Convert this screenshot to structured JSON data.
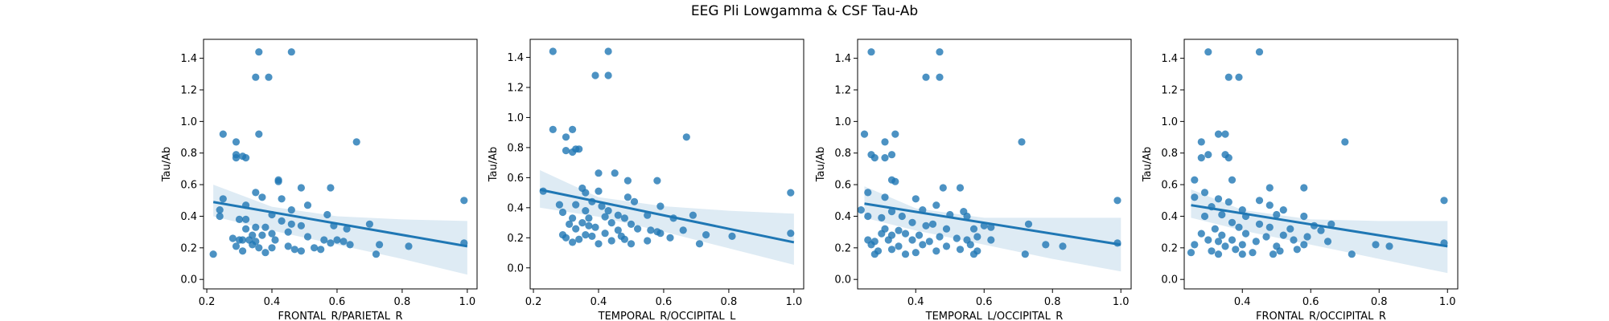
{
  "figure": {
    "suptitle": "EEG Pli Lowgamma & CSF Tau-Ab"
  },
  "chart_data": [
    {
      "type": "scatter",
      "xlabel": "FRONTAL_R/PARIETAL_R",
      "ylabel": "Tau/Ab",
      "xlim": [
        0.19,
        1.03
      ],
      "ylim": [
        -0.06,
        1.52
      ],
      "xticks": [
        0.2,
        0.4,
        0.6,
        0.8,
        1.0
      ],
      "xtick_labels": [
        "0.2",
        "0.4",
        "0.6",
        "0.8",
        "1.0"
      ],
      "yticks": [
        0.0,
        0.2,
        0.4,
        0.6,
        0.8,
        1.0,
        1.2,
        1.4
      ],
      "ytick_labels": [
        "0.0",
        "0.2",
        "0.4",
        "0.6",
        "0.8",
        "1.0",
        "1.2",
        "1.4"
      ],
      "points": [
        [
          0.36,
          1.44
        ],
        [
          0.46,
          1.44
        ],
        [
          0.35,
          1.28
        ],
        [
          0.39,
          1.28
        ],
        [
          0.25,
          0.92
        ],
        [
          0.36,
          0.92
        ],
        [
          0.29,
          0.87
        ],
        [
          0.66,
          0.87
        ],
        [
          0.29,
          0.79
        ],
        [
          0.31,
          0.78
        ],
        [
          0.29,
          0.77
        ],
        [
          0.32,
          0.77
        ],
        [
          0.42,
          0.63
        ],
        [
          0.42,
          0.62
        ],
        [
          0.49,
          0.58
        ],
        [
          0.58,
          0.58
        ],
        [
          0.35,
          0.55
        ],
        [
          0.37,
          0.52
        ],
        [
          0.43,
          0.51
        ],
        [
          0.25,
          0.51
        ],
        [
          0.24,
          0.44
        ],
        [
          0.46,
          0.44
        ],
        [
          0.32,
          0.47
        ],
        [
          0.51,
          0.47
        ],
        [
          0.57,
          0.41
        ],
        [
          0.24,
          0.4
        ],
        [
          0.4,
          0.41
        ],
        [
          0.3,
          0.38
        ],
        [
          0.32,
          0.38
        ],
        [
          0.43,
          0.37
        ],
        [
          0.46,
          0.35
        ],
        [
          0.49,
          0.34
        ],
        [
          0.59,
          0.34
        ],
        [
          0.7,
          0.35
        ],
        [
          0.38,
          0.33
        ],
        [
          0.32,
          0.32
        ],
        [
          0.35,
          0.33
        ],
        [
          0.63,
          0.32
        ],
        [
          0.45,
          0.3
        ],
        [
          0.4,
          0.29
        ],
        [
          0.37,
          0.28
        ],
        [
          0.34,
          0.28
        ],
        [
          0.28,
          0.26
        ],
        [
          0.3,
          0.25
        ],
        [
          0.31,
          0.25
        ],
        [
          0.33,
          0.25
        ],
        [
          0.35,
          0.24
        ],
        [
          0.41,
          0.25
        ],
        [
          0.51,
          0.27
        ],
        [
          0.56,
          0.25
        ],
        [
          0.6,
          0.25
        ],
        [
          0.62,
          0.24
        ],
        [
          0.73,
          0.22
        ],
        [
          0.82,
          0.21
        ],
        [
          0.29,
          0.21
        ],
        [
          0.34,
          0.22
        ],
        [
          0.36,
          0.2
        ],
        [
          0.4,
          0.2
        ],
        [
          0.47,
          0.19
        ],
        [
          0.49,
          0.18
        ],
        [
          0.53,
          0.2
        ],
        [
          0.55,
          0.19
        ],
        [
          0.58,
          0.23
        ],
        [
          0.64,
          0.22
        ],
        [
          0.31,
          0.18
        ],
        [
          0.38,
          0.17
        ],
        [
          0.45,
          0.21
        ],
        [
          0.72,
          0.16
        ],
        [
          0.22,
          0.16
        ],
        [
          0.99,
          0.5
        ],
        [
          0.99,
          0.23
        ]
      ],
      "regression": {
        "x": [
          0.22,
          1.0
        ],
        "y": [
          0.49,
          0.21
        ]
      },
      "ci_band": {
        "x": [
          0.22,
          0.4,
          0.6,
          0.8,
          1.0
        ],
        "lower": [
          0.4,
          0.31,
          0.22,
          0.13,
          0.03
        ],
        "upper": [
          0.6,
          0.46,
          0.4,
          0.38,
          0.37
        ]
      }
    },
    {
      "type": "scatter",
      "xlabel": "TEMPORAL_R/OCCIPITAL_L",
      "ylabel": "Tau/Ab",
      "xlim": [
        0.19,
        1.03
      ],
      "ylim": [
        -0.14,
        1.52
      ],
      "xticks": [
        0.2,
        0.4,
        0.6,
        0.8,
        1.0
      ],
      "xtick_labels": [
        "0.2",
        "0.4",
        "0.6",
        "0.8",
        "1.0"
      ],
      "yticks": [
        0.0,
        0.2,
        0.4,
        0.6,
        0.8,
        1.0,
        1.2,
        1.4
      ],
      "ytick_labels": [
        "0.0",
        "0.2",
        "0.4",
        "0.6",
        "0.8",
        "1.0",
        "1.2",
        "1.4"
      ],
      "points": [
        [
          0.26,
          1.44
        ],
        [
          0.43,
          1.44
        ],
        [
          0.39,
          1.28
        ],
        [
          0.43,
          1.28
        ],
        [
          0.26,
          0.92
        ],
        [
          0.32,
          0.92
        ],
        [
          0.3,
          0.87
        ],
        [
          0.67,
          0.87
        ],
        [
          0.3,
          0.78
        ],
        [
          0.33,
          0.79
        ],
        [
          0.34,
          0.79
        ],
        [
          0.32,
          0.77
        ],
        [
          0.4,
          0.63
        ],
        [
          0.45,
          0.63
        ],
        [
          0.58,
          0.58
        ],
        [
          0.49,
          0.58
        ],
        [
          0.23,
          0.51
        ],
        [
          0.35,
          0.53
        ],
        [
          0.36,
          0.5
        ],
        [
          0.4,
          0.51
        ],
        [
          0.49,
          0.47
        ],
        [
          0.38,
          0.44
        ],
        [
          0.28,
          0.42
        ],
        [
          0.33,
          0.42
        ],
        [
          0.41,
          0.41
        ],
        [
          0.51,
          0.44
        ],
        [
          0.59,
          0.41
        ],
        [
          0.29,
          0.37
        ],
        [
          0.36,
          0.38
        ],
        [
          0.43,
          0.38
        ],
        [
          0.46,
          0.35
        ],
        [
          0.55,
          0.35
        ],
        [
          0.32,
          0.33
        ],
        [
          0.37,
          0.33
        ],
        [
          0.42,
          0.34
        ],
        [
          0.48,
          0.33
        ],
        [
          0.63,
          0.33
        ],
        [
          0.69,
          0.35
        ],
        [
          0.31,
          0.29
        ],
        [
          0.35,
          0.3
        ],
        [
          0.37,
          0.28
        ],
        [
          0.44,
          0.3
        ],
        [
          0.5,
          0.29
        ],
        [
          0.33,
          0.26
        ],
        [
          0.39,
          0.27
        ],
        [
          0.46,
          0.25
        ],
        [
          0.52,
          0.26
        ],
        [
          0.56,
          0.25
        ],
        [
          0.58,
          0.24
        ],
        [
          0.66,
          0.25
        ],
        [
          0.29,
          0.22
        ],
        [
          0.36,
          0.22
        ],
        [
          0.42,
          0.23
        ],
        [
          0.47,
          0.21
        ],
        [
          0.59,
          0.23
        ],
        [
          0.73,
          0.22
        ],
        [
          0.81,
          0.21
        ],
        [
          0.3,
          0.2
        ],
        [
          0.34,
          0.19
        ],
        [
          0.38,
          0.21
        ],
        [
          0.44,
          0.18
        ],
        [
          0.48,
          0.19
        ],
        [
          0.55,
          0.18
        ],
        [
          0.62,
          0.2
        ],
        [
          0.32,
          0.17
        ],
        [
          0.4,
          0.16
        ],
        [
          0.5,
          0.16
        ],
        [
          0.71,
          0.16
        ],
        [
          0.99,
          0.5
        ],
        [
          0.99,
          0.23
        ]
      ],
      "regression": {
        "x": [
          0.22,
          1.0
        ],
        "y": [
          0.52,
          0.17
        ]
      },
      "ci_band": {
        "x": [
          0.22,
          0.4,
          0.6,
          0.8,
          1.0
        ],
        "lower": [
          0.4,
          0.34,
          0.24,
          0.13,
          0.02
        ],
        "upper": [
          0.65,
          0.47,
          0.41,
          0.38,
          0.36
        ]
      }
    },
    {
      "type": "scatter",
      "xlabel": "TEMPORAL_L/OCCIPITAL_R",
      "ylabel": "Tau/Ab",
      "xlim": [
        0.23,
        1.03
      ],
      "ylim": [
        -0.06,
        1.52
      ],
      "xticks": [
        0.4,
        0.6,
        0.8,
        1.0
      ],
      "xtick_labels": [
        "0.4",
        "0.6",
        "0.8",
        "1.0"
      ],
      "yticks": [
        0.0,
        0.2,
        0.4,
        0.6,
        0.8,
        1.0,
        1.2,
        1.4
      ],
      "ytick_labels": [
        "0.0",
        "0.2",
        "0.4",
        "0.6",
        "0.8",
        "1.0",
        "1.2",
        "1.4"
      ],
      "points": [
        [
          0.27,
          1.44
        ],
        [
          0.47,
          1.44
        ],
        [
          0.43,
          1.28
        ],
        [
          0.47,
          1.28
        ],
        [
          0.25,
          0.92
        ],
        [
          0.34,
          0.92
        ],
        [
          0.31,
          0.87
        ],
        [
          0.71,
          0.87
        ],
        [
          0.27,
          0.79
        ],
        [
          0.28,
          0.77
        ],
        [
          0.31,
          0.77
        ],
        [
          0.33,
          0.79
        ],
        [
          0.33,
          0.63
        ],
        [
          0.34,
          0.62
        ],
        [
          0.48,
          0.58
        ],
        [
          0.53,
          0.58
        ],
        [
          0.26,
          0.55
        ],
        [
          0.31,
          0.52
        ],
        [
          0.4,
          0.51
        ],
        [
          0.46,
          0.47
        ],
        [
          0.24,
          0.44
        ],
        [
          0.33,
          0.43
        ],
        [
          0.42,
          0.44
        ],
        [
          0.54,
          0.43
        ],
        [
          0.26,
          0.4
        ],
        [
          0.3,
          0.39
        ],
        [
          0.36,
          0.4
        ],
        [
          0.5,
          0.41
        ],
        [
          0.55,
          0.4
        ],
        [
          0.39,
          0.36
        ],
        [
          0.45,
          0.35
        ],
        [
          0.6,
          0.34
        ],
        [
          0.73,
          0.35
        ],
        [
          0.31,
          0.32
        ],
        [
          0.35,
          0.31
        ],
        [
          0.43,
          0.34
        ],
        [
          0.49,
          0.32
        ],
        [
          0.57,
          0.32
        ],
        [
          0.62,
          0.33
        ],
        [
          0.3,
          0.29
        ],
        [
          0.33,
          0.28
        ],
        [
          0.37,
          0.29
        ],
        [
          0.41,
          0.28
        ],
        [
          0.47,
          0.27
        ],
        [
          0.52,
          0.26
        ],
        [
          0.58,
          0.27
        ],
        [
          0.26,
          0.25
        ],
        [
          0.28,
          0.24
        ],
        [
          0.32,
          0.25
        ],
        [
          0.39,
          0.25
        ],
        [
          0.44,
          0.24
        ],
        [
          0.55,
          0.25
        ],
        [
          0.62,
          0.25
        ],
        [
          0.27,
          0.22
        ],
        [
          0.35,
          0.21
        ],
        [
          0.42,
          0.22
        ],
        [
          0.49,
          0.21
        ],
        [
          0.56,
          0.22
        ],
        [
          0.78,
          0.22
        ],
        [
          0.83,
          0.21
        ],
        [
          0.29,
          0.18
        ],
        [
          0.33,
          0.19
        ],
        [
          0.4,
          0.17
        ],
        [
          0.46,
          0.18
        ],
        [
          0.53,
          0.19
        ],
        [
          0.58,
          0.18
        ],
        [
          0.28,
          0.16
        ],
        [
          0.37,
          0.16
        ],
        [
          0.57,
          0.16
        ],
        [
          0.72,
          0.16
        ],
        [
          0.99,
          0.5
        ],
        [
          0.99,
          0.23
        ]
      ],
      "regression": {
        "x": [
          0.25,
          1.0
        ],
        "y": [
          0.48,
          0.22
        ]
      },
      "ci_band": {
        "x": [
          0.25,
          0.4,
          0.6,
          0.8,
          1.0
        ],
        "lower": [
          0.39,
          0.31,
          0.22,
          0.13,
          0.05
        ],
        "upper": [
          0.59,
          0.45,
          0.39,
          0.39,
          0.39
        ]
      }
    },
    {
      "type": "scatter",
      "xlabel": "FRONTAL_R/OCCIPITAL_R",
      "ylabel": "Tau/Ab",
      "xlim": [
        0.23,
        1.03
      ],
      "ylim": [
        -0.06,
        1.52
      ],
      "xticks": [
        0.4,
        0.6,
        0.8,
        1.0
      ],
      "xtick_labels": [
        "0.4",
        "0.6",
        "0.8",
        "1.0"
      ],
      "yticks": [
        0.0,
        0.2,
        0.4,
        0.6,
        0.8,
        1.0,
        1.2,
        1.4
      ],
      "ytick_labels": [
        "0.0",
        "0.2",
        "0.4",
        "0.6",
        "0.8",
        "1.0",
        "1.2",
        "1.4"
      ],
      "points": [
        [
          0.3,
          1.44
        ],
        [
          0.45,
          1.44
        ],
        [
          0.36,
          1.28
        ],
        [
          0.39,
          1.28
        ],
        [
          0.33,
          0.92
        ],
        [
          0.35,
          0.92
        ],
        [
          0.28,
          0.87
        ],
        [
          0.7,
          0.87
        ],
        [
          0.3,
          0.79
        ],
        [
          0.35,
          0.79
        ],
        [
          0.28,
          0.77
        ],
        [
          0.36,
          0.77
        ],
        [
          0.26,
          0.63
        ],
        [
          0.37,
          0.63
        ],
        [
          0.48,
          0.58
        ],
        [
          0.58,
          0.58
        ],
        [
          0.29,
          0.55
        ],
        [
          0.26,
          0.52
        ],
        [
          0.33,
          0.51
        ],
        [
          0.45,
          0.5
        ],
        [
          0.36,
          0.49
        ],
        [
          0.48,
          0.47
        ],
        [
          0.31,
          0.46
        ],
        [
          0.4,
          0.44
        ],
        [
          0.52,
          0.44
        ],
        [
          0.29,
          0.4
        ],
        [
          0.34,
          0.41
        ],
        [
          0.41,
          0.4
        ],
        [
          0.5,
          0.41
        ],
        [
          0.58,
          0.4
        ],
        [
          0.37,
          0.36
        ],
        [
          0.45,
          0.35
        ],
        [
          0.61,
          0.34
        ],
        [
          0.66,
          0.35
        ],
        [
          0.32,
          0.32
        ],
        [
          0.39,
          0.33
        ],
        [
          0.48,
          0.33
        ],
        [
          0.54,
          0.32
        ],
        [
          0.63,
          0.31
        ],
        [
          0.28,
          0.29
        ],
        [
          0.34,
          0.28
        ],
        [
          0.41,
          0.29
        ],
        [
          0.47,
          0.27
        ],
        [
          0.52,
          0.28
        ],
        [
          0.59,
          0.27
        ],
        [
          0.3,
          0.25
        ],
        [
          0.33,
          0.24
        ],
        [
          0.37,
          0.25
        ],
        [
          0.44,
          0.24
        ],
        [
          0.55,
          0.25
        ],
        [
          0.65,
          0.24
        ],
        [
          0.26,
          0.22
        ],
        [
          0.35,
          0.21
        ],
        [
          0.4,
          0.22
        ],
        [
          0.5,
          0.21
        ],
        [
          0.58,
          0.22
        ],
        [
          0.79,
          0.22
        ],
        [
          0.83,
          0.21
        ],
        [
          0.31,
          0.18
        ],
        [
          0.38,
          0.19
        ],
        [
          0.43,
          0.17
        ],
        [
          0.51,
          0.18
        ],
        [
          0.56,
          0.19
        ],
        [
          0.33,
          0.16
        ],
        [
          0.4,
          0.16
        ],
        [
          0.49,
          0.16
        ],
        [
          0.72,
          0.16
        ],
        [
          0.25,
          0.17
        ],
        [
          0.99,
          0.5
        ],
        [
          0.99,
          0.23
        ]
      ],
      "regression": {
        "x": [
          0.25,
          1.0
        ],
        "y": [
          0.47,
          0.21
        ]
      },
      "ci_band": {
        "x": [
          0.25,
          0.4,
          0.6,
          0.8,
          1.0
        ],
        "lower": [
          0.39,
          0.31,
          0.22,
          0.13,
          0.04
        ],
        "upper": [
          0.57,
          0.44,
          0.38,
          0.37,
          0.37
        ]
      }
    }
  ]
}
